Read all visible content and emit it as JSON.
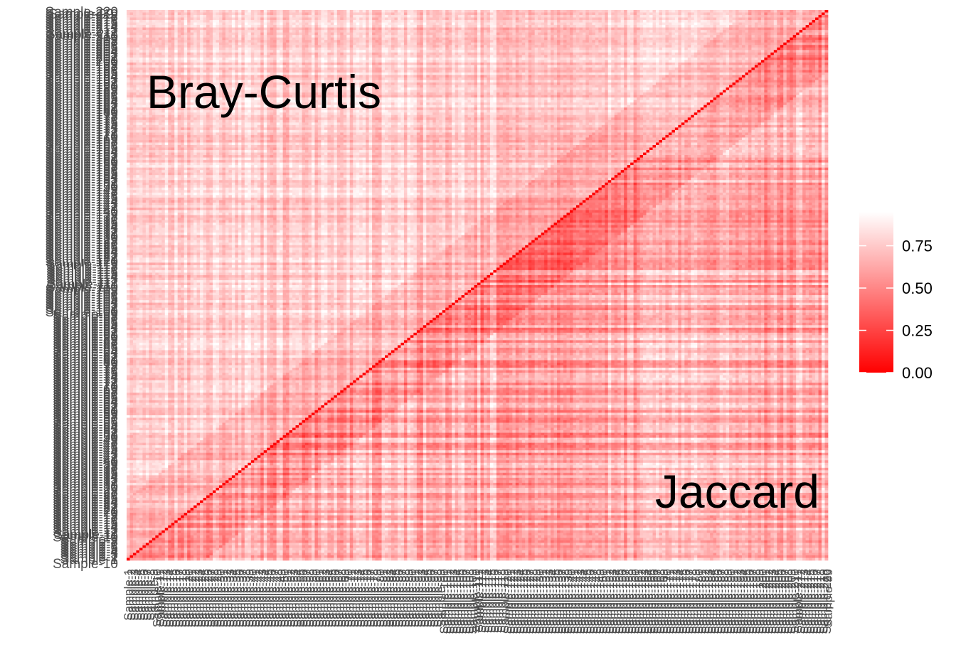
{
  "chart_data": {
    "type": "heatmap",
    "annotations": {
      "upper_triangle": "Bray-Curtis",
      "lower_triangle": "Jaccard"
    },
    "colorscale": {
      "low_color": "#ff0000",
      "high_color": "#ffffff",
      "range": [
        0,
        0.95
      ],
      "ticks": [
        0.0,
        0.25,
        0.5,
        0.75
      ],
      "tick_labels": [
        "0.00",
        "0.25",
        "0.50",
        "0.75"
      ]
    },
    "diagonal_value": 0,
    "sample_prefix": "Sample-",
    "n_samples": 220,
    "visible_row_labels": [
      "Sample-99",
      "Sample-10"
    ],
    "visible_column_labels": [
      "Sample-10",
      "Sample-99"
    ],
    "values_note": "Dissimilarities between 0 and ~0.95; Bray-Curtis upper triangle mostly 0.4–0.9, Jaccard lower triangle mostly 0.6–0.95"
  }
}
